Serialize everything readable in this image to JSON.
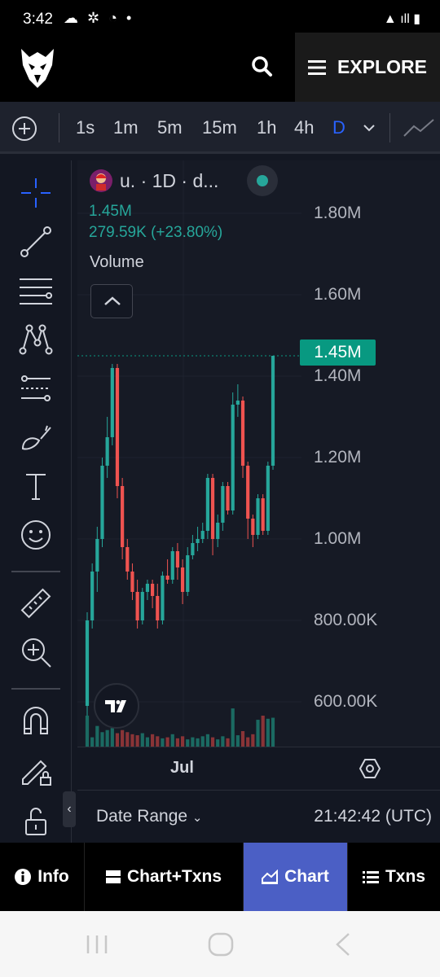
{
  "status_bar": {
    "time": "3:42",
    "left_icons": "☁ ✲ ◔ •",
    "right_icons": "▲ ıll ▮"
  },
  "header": {
    "explore_label": "EXPLORE"
  },
  "timeframes": [
    "1s",
    "1m",
    "5m",
    "15m",
    "1h",
    "4h",
    "D"
  ],
  "active_timeframe": "D",
  "legend": {
    "title": "u. · 1D · d...",
    "volume_value": "1.45M",
    "volume_change": "279.59K (+23.80%)",
    "volume_label": "Volume"
  },
  "price_axis": {
    "labels": [
      "1.80M",
      "1.60M",
      "1.40M",
      "1.20M",
      "1.00M",
      "800.00K",
      "600.00K"
    ],
    "current_price": "1.45M"
  },
  "time_axis": {
    "label": "Jul"
  },
  "footer": {
    "date_range": "Date Range",
    "clock": "21:42:42 (UTC)"
  },
  "tabs": [
    {
      "label": "Info",
      "icon": "info-icon"
    },
    {
      "label": "Chart+Txns",
      "icon": "split-view-icon"
    },
    {
      "label": "Chart",
      "icon": "chart-icon"
    },
    {
      "label": "Txns",
      "icon": "list-icon"
    }
  ],
  "active_tab": "Chart",
  "colors": {
    "up": "#26a69a",
    "down": "#ef5350",
    "accent": "#2962ff",
    "active_tab": "#4b5fc5"
  },
  "chart_data": {
    "type": "candlestick",
    "ylim": [
      560000,
      1900000
    ],
    "candles": [
      {
        "o": 590000,
        "h": 820000,
        "l": 560000,
        "c": 800000
      },
      {
        "o": 800000,
        "h": 940000,
        "l": 780000,
        "c": 920000
      },
      {
        "o": 920000,
        "h": 1030000,
        "l": 870000,
        "c": 1000000
      },
      {
        "o": 1000000,
        "h": 1200000,
        "l": 980000,
        "c": 1180000
      },
      {
        "o": 1180000,
        "h": 1300000,
        "l": 1150000,
        "c": 1250000
      },
      {
        "o": 1250000,
        "h": 1430000,
        "l": 1230000,
        "c": 1420000
      },
      {
        "o": 1420000,
        "h": 1430000,
        "l": 1100000,
        "c": 1130000
      },
      {
        "o": 1130000,
        "h": 1150000,
        "l": 950000,
        "c": 980000
      },
      {
        "o": 980000,
        "h": 1000000,
        "l": 900000,
        "c": 920000
      },
      {
        "o": 920000,
        "h": 940000,
        "l": 850000,
        "c": 870000
      },
      {
        "o": 870000,
        "h": 900000,
        "l": 780000,
        "c": 800000
      },
      {
        "o": 800000,
        "h": 880000,
        "l": 790000,
        "c": 870000
      },
      {
        "o": 870000,
        "h": 900000,
        "l": 850000,
        "c": 890000
      },
      {
        "o": 890000,
        "h": 900000,
        "l": 830000,
        "c": 860000
      },
      {
        "o": 860000,
        "h": 890000,
        "l": 780000,
        "c": 800000
      },
      {
        "o": 800000,
        "h": 920000,
        "l": 790000,
        "c": 910000
      },
      {
        "o": 910000,
        "h": 950000,
        "l": 890000,
        "c": 900000
      },
      {
        "o": 900000,
        "h": 980000,
        "l": 890000,
        "c": 970000
      },
      {
        "o": 970000,
        "h": 990000,
        "l": 900000,
        "c": 930000
      },
      {
        "o": 930000,
        "h": 950000,
        "l": 840000,
        "c": 870000
      },
      {
        "o": 870000,
        "h": 980000,
        "l": 860000,
        "c": 960000
      },
      {
        "o": 960000,
        "h": 1010000,
        "l": 950000,
        "c": 990000
      },
      {
        "o": 990000,
        "h": 1030000,
        "l": 970000,
        "c": 1000000
      },
      {
        "o": 1000000,
        "h": 1040000,
        "l": 990000,
        "c": 1020000
      },
      {
        "o": 1020000,
        "h": 1160000,
        "l": 1000000,
        "c": 1150000
      },
      {
        "o": 1150000,
        "h": 1160000,
        "l": 960000,
        "c": 1000000
      },
      {
        "o": 1000000,
        "h": 1060000,
        "l": 980000,
        "c": 1040000
      },
      {
        "o": 1040000,
        "h": 1140000,
        "l": 1020000,
        "c": 1130000
      },
      {
        "o": 1130000,
        "h": 1140000,
        "l": 1060000,
        "c": 1070000
      },
      {
        "o": 1070000,
        "h": 1360000,
        "l": 1060000,
        "c": 1330000
      },
      {
        "o": 1330000,
        "h": 1380000,
        "l": 1300000,
        "c": 1340000
      },
      {
        "o": 1340000,
        "h": 1350000,
        "l": 1150000,
        "c": 1180000
      },
      {
        "o": 1180000,
        "h": 1190000,
        "l": 1000000,
        "c": 1050000
      },
      {
        "o": 1050000,
        "h": 1060000,
        "l": 980000,
        "c": 1010000
      },
      {
        "o": 1010000,
        "h": 1110000,
        "l": 1000000,
        "c": 1100000
      },
      {
        "o": 1100000,
        "h": 1110000,
        "l": 1010000,
        "c": 1020000
      },
      {
        "o": 1020000,
        "h": 1190000,
        "l": 1010000,
        "c": 1180000
      },
      {
        "o": 1180000,
        "h": 1450000,
        "l": 1170000,
        "c": 1450000
      }
    ],
    "volume_scale": 30,
    "volumes": [
      30,
      9,
      20,
      14,
      16,
      18,
      13,
      16,
      14,
      12,
      11,
      13,
      9,
      12,
      10,
      8,
      9,
      12,
      8,
      10,
      7,
      9,
      8,
      10,
      12,
      9,
      7,
      10,
      8,
      37,
      11,
      15,
      9,
      12,
      26,
      30,
      27,
      28
    ]
  }
}
